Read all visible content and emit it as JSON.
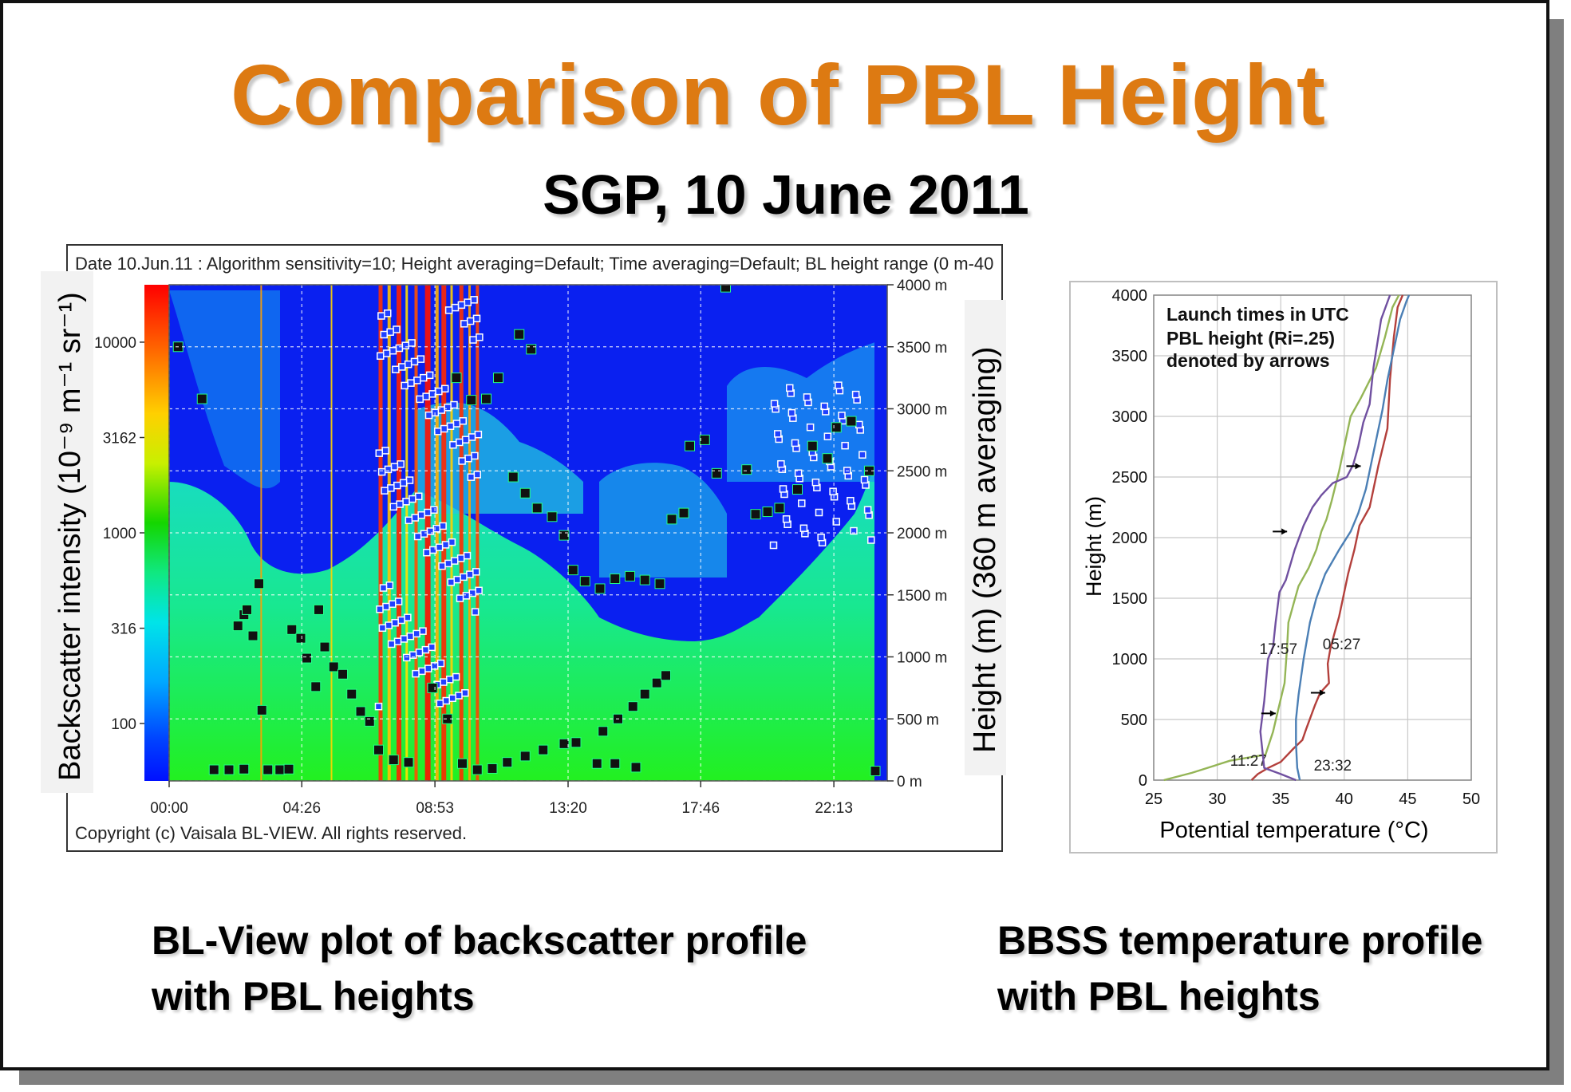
{
  "title": "Comparison of PBL Height",
  "subtitle": "SGP, 10 June 2011",
  "captions": {
    "left": [
      "BL-View plot of backscatter profile",
      "with PBL heights"
    ],
    "right": [
      "BBSS temperature profile",
      "with PBL heights"
    ]
  },
  "colors": {
    "title": "#dd7a12"
  },
  "chart_data": [
    {
      "type": "heatmap",
      "header": "Date 10.Jun.11  :  Algorithm sensitivity=10; Height averaging=Default; Time averaging=Default; BL height range (0 m-40",
      "footer": "Copyright (c) Vaisala BL-VIEW. All rights reserved.",
      "ylabel_left": "Backscatter intensity (10⁻⁹ m⁻¹ sr⁻¹)",
      "ylabel_right": "Height (m) (360 m averaging)",
      "colorbar_ticks": [
        "10000",
        "3162",
        "1000",
        "316",
        "100"
      ],
      "colorbar_scale": "log",
      "colorbar_range": [
        50,
        20000
      ],
      "height_ticks": [
        "4000 m",
        "3500 m",
        "3000 m",
        "2500 m",
        "2000 m",
        "1500 m",
        "1000 m",
        "500 m",
        "0 m"
      ],
      "height_range": [
        0,
        4000
      ],
      "time_ticks": [
        "00:00",
        "04:26",
        "08:53",
        "13:20",
        "17:46",
        "22:13"
      ],
      "time_range_hours": [
        0,
        24
      ],
      "pbl_heights": [
        {
          "t": 0.3,
          "h": 3500
        },
        {
          "t": 1.1,
          "h": 3080
        },
        {
          "t": 1.5,
          "h": 90
        },
        {
          "t": 2.0,
          "h": 90
        },
        {
          "t": 2.5,
          "h": 95
        },
        {
          "t": 2.3,
          "h": 1250
        },
        {
          "t": 2.5,
          "h": 1340
        },
        {
          "t": 2.6,
          "h": 1380
        },
        {
          "t": 2.8,
          "h": 1170
        },
        {
          "t": 3.0,
          "h": 1590
        },
        {
          "t": 3.1,
          "h": 570
        },
        {
          "t": 3.3,
          "h": 90
        },
        {
          "t": 3.7,
          "h": 90
        },
        {
          "t": 4.0,
          "h": 95
        },
        {
          "t": 4.1,
          "h": 1220
        },
        {
          "t": 4.4,
          "h": 1150
        },
        {
          "t": 4.6,
          "h": 990
        },
        {
          "t": 4.9,
          "h": 760
        },
        {
          "t": 5.0,
          "h": 1380
        },
        {
          "t": 5.2,
          "h": 1080
        },
        {
          "t": 5.5,
          "h": 920
        },
        {
          "t": 5.8,
          "h": 860
        },
        {
          "t": 6.1,
          "h": 700
        },
        {
          "t": 6.4,
          "h": 560
        },
        {
          "t": 6.7,
          "h": 480
        },
        {
          "t": 7.0,
          "h": 250
        },
        {
          "t": 7.5,
          "h": 170
        },
        {
          "t": 8.0,
          "h": 150
        },
        {
          "t": 8.8,
          "h": 750
        },
        {
          "t": 9.3,
          "h": 500
        },
        {
          "t": 9.8,
          "h": 140
        },
        {
          "t": 10.3,
          "h": 90
        },
        {
          "t": 10.8,
          "h": 100
        },
        {
          "t": 11.3,
          "h": 150
        },
        {
          "t": 11.9,
          "h": 200
        },
        {
          "t": 12.5,
          "h": 250
        },
        {
          "t": 13.2,
          "h": 300
        },
        {
          "t": 13.6,
          "h": 310
        },
        {
          "t": 14.3,
          "h": 140
        },
        {
          "t": 14.9,
          "h": 140
        },
        {
          "t": 15.6,
          "h": 110
        },
        {
          "t": 14.5,
          "h": 400
        },
        {
          "t": 15.0,
          "h": 500
        },
        {
          "t": 15.5,
          "h": 600
        },
        {
          "t": 15.9,
          "h": 700
        },
        {
          "t": 16.3,
          "h": 790
        },
        {
          "t": 16.6,
          "h": 850
        },
        {
          "t": 9.6,
          "h": 3250
        },
        {
          "t": 10.1,
          "h": 3070
        },
        {
          "t": 10.6,
          "h": 3080
        },
        {
          "t": 11.0,
          "h": 3250
        },
        {
          "t": 11.7,
          "h": 3600
        },
        {
          "t": 12.1,
          "h": 3480
        },
        {
          "t": 11.5,
          "h": 2450
        },
        {
          "t": 11.9,
          "h": 2320
        },
        {
          "t": 12.3,
          "h": 2200
        },
        {
          "t": 12.8,
          "h": 2130
        },
        {
          "t": 13.2,
          "h": 1980
        },
        {
          "t": 13.5,
          "h": 1700
        },
        {
          "t": 13.9,
          "h": 1610
        },
        {
          "t": 14.4,
          "h": 1550
        },
        {
          "t": 14.9,
          "h": 1630
        },
        {
          "t": 15.4,
          "h": 1650
        },
        {
          "t": 15.9,
          "h": 1620
        },
        {
          "t": 16.4,
          "h": 1590
        },
        {
          "t": 16.8,
          "h": 2110
        },
        {
          "t": 17.2,
          "h": 2160
        },
        {
          "t": 17.4,
          "h": 2700
        },
        {
          "t": 17.9,
          "h": 2750
        },
        {
          "t": 18.3,
          "h": 2480
        },
        {
          "t": 18.6,
          "h": 3980
        },
        {
          "t": 19.3,
          "h": 2510
        },
        {
          "t": 19.6,
          "h": 2150
        },
        {
          "t": 20.0,
          "h": 2170
        },
        {
          "t": 20.4,
          "h": 2200
        },
        {
          "t": 21.0,
          "h": 2350
        },
        {
          "t": 21.5,
          "h": 2700
        },
        {
          "t": 22.0,
          "h": 2600
        },
        {
          "t": 22.3,
          "h": 2850
        },
        {
          "t": 22.8,
          "h": 2900
        },
        {
          "t": 23.4,
          "h": 2500
        },
        {
          "t": 23.6,
          "h": 80
        }
      ]
    },
    {
      "type": "line",
      "xlabel": "Potential temperature (°C)",
      "ylabel": "Height (m)",
      "xlim": [
        25,
        50
      ],
      "ylim": [
        0,
        4000
      ],
      "xticks": [
        25,
        30,
        35,
        40,
        45,
        50
      ],
      "yticks": [
        0,
        500,
        1000,
        1500,
        2000,
        2500,
        3000,
        3500,
        4000
      ],
      "grid": true,
      "legend_note": [
        "Launch times in UTC",
        "PBL height (Ri=.25)",
        "denoted by arrows"
      ],
      "series": [
        {
          "name": "05:27",
          "color": "#b3403c",
          "x": [
            32.7,
            33.2,
            34.0,
            35.0,
            36.0,
            36.7,
            37.0,
            37.7,
            38.1,
            38.8,
            38.7,
            38.9,
            39.2,
            39.6,
            40.3,
            40.8,
            41.2,
            42.0,
            42.3,
            42.7,
            43.4,
            43.6,
            43.9,
            44.2,
            44.6
          ],
          "y": [
            0,
            50,
            100,
            150,
            260,
            330,
            420,
            620,
            720,
            800,
            960,
            1080,
            1200,
            1350,
            1700,
            1900,
            2100,
            2250,
            2400,
            2600,
            2900,
            3300,
            3650,
            3900,
            4000
          ]
        },
        {
          "name": "11:27",
          "color": "#94b556",
          "x": [
            25.8,
            28.0,
            31.0,
            33.8,
            34.4,
            34.8,
            35.3,
            35.5,
            35.6,
            36.0,
            36.4,
            37.2,
            37.8,
            38.2,
            38.6,
            39.0,
            39.6,
            40.5,
            41.3,
            42.5,
            43.2,
            43.8,
            44.3
          ],
          "y": [
            0,
            60,
            160,
            210,
            400,
            580,
            800,
            1100,
            1300,
            1450,
            1600,
            1750,
            1900,
            2050,
            2150,
            2300,
            2550,
            3000,
            3150,
            3400,
            3650,
            3900,
            4000
          ]
        },
        {
          "name": "17:57",
          "color": "#7050a0",
          "x": [
            36.2,
            35.0,
            33.7,
            33.4,
            33.7,
            34.0,
            34.4,
            34.6,
            34.9,
            35.4,
            36.1,
            36.8,
            37.5,
            38.2,
            39.1,
            40.2,
            40.7,
            41.1,
            41.5,
            42.0,
            42.3,
            42.9,
            43.6
          ],
          "y": [
            0,
            50,
            100,
            400,
            650,
            1000,
            1100,
            1300,
            1550,
            1650,
            1900,
            2100,
            2250,
            2350,
            2450,
            2500,
            2600,
            2750,
            2950,
            3100,
            3400,
            3800,
            4000
          ]
        },
        {
          "name": "23:32",
          "color": "#4b7fb5",
          "x": [
            36.5,
            36.3,
            36.2,
            36.2,
            36.4,
            36.8,
            37.3,
            37.8,
            38.5,
            39.6,
            40.5,
            41.1,
            41.7,
            42.2,
            42.6,
            43.0,
            43.4,
            44.0,
            44.4,
            44.9,
            45.1
          ],
          "y": [
            0,
            100,
            300,
            500,
            700,
            1000,
            1300,
            1500,
            1700,
            1900,
            2050,
            2200,
            2400,
            2650,
            2850,
            3050,
            3300,
            3600,
            3800,
            3950,
            4000
          ]
        }
      ],
      "pbl_arrows": [
        {
          "label": "11:27",
          "x": 34.6,
          "y": 550
        },
        {
          "label": "05:27",
          "x": 38.5,
          "y": 720
        },
        {
          "label": "17:57",
          "x": 35.5,
          "y": 2050
        },
        {
          "label": "23:32",
          "x": 41.3,
          "y": 2590
        }
      ]
    }
  ]
}
